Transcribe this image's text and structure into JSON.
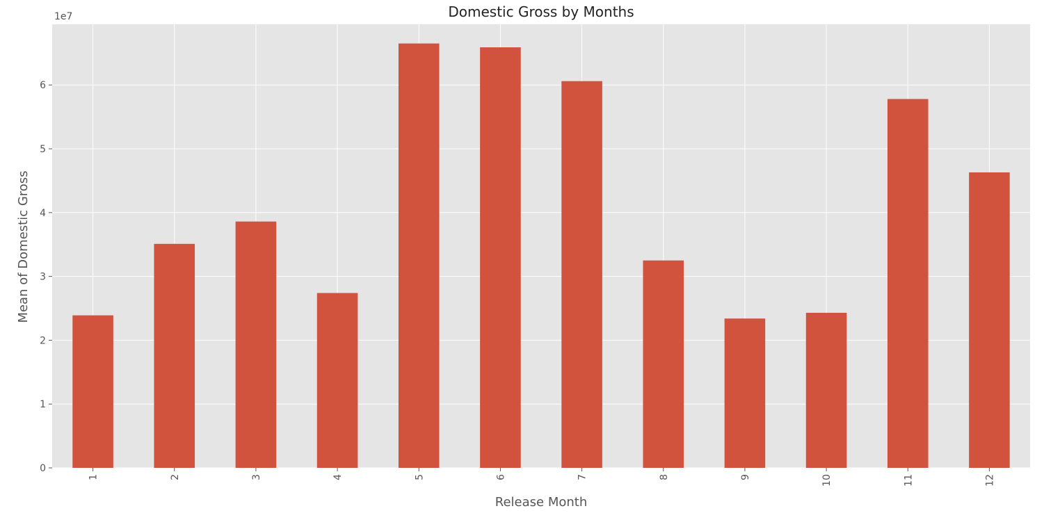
{
  "chart_data": {
    "type": "bar",
    "title": "Domestic Gross by Months",
    "xlabel": "Release Month",
    "ylabel": "Mean of Domestic Gross",
    "y_offset_label": "1e7",
    "categories": [
      "1",
      "2",
      "3",
      "4",
      "5",
      "6",
      "7",
      "8",
      "9",
      "10",
      "11",
      "12"
    ],
    "values": [
      23900000,
      35100000,
      38600000,
      27400000,
      66500000,
      65900000,
      60600000,
      32500000,
      23400000,
      24300000,
      57800000,
      46300000
    ],
    "ylim": [
      0,
      69500000
    ],
    "y_ticks": [
      0,
      10000000,
      20000000,
      30000000,
      40000000,
      50000000,
      60000000
    ],
    "y_tick_labels": [
      "0",
      "1",
      "2",
      "3",
      "4",
      "5",
      "6"
    ],
    "grid": true,
    "legend": "none",
    "colors": {
      "bar": "#d1533e",
      "plot_background": "#e5e5e5",
      "grid": "#ffffff"
    }
  }
}
